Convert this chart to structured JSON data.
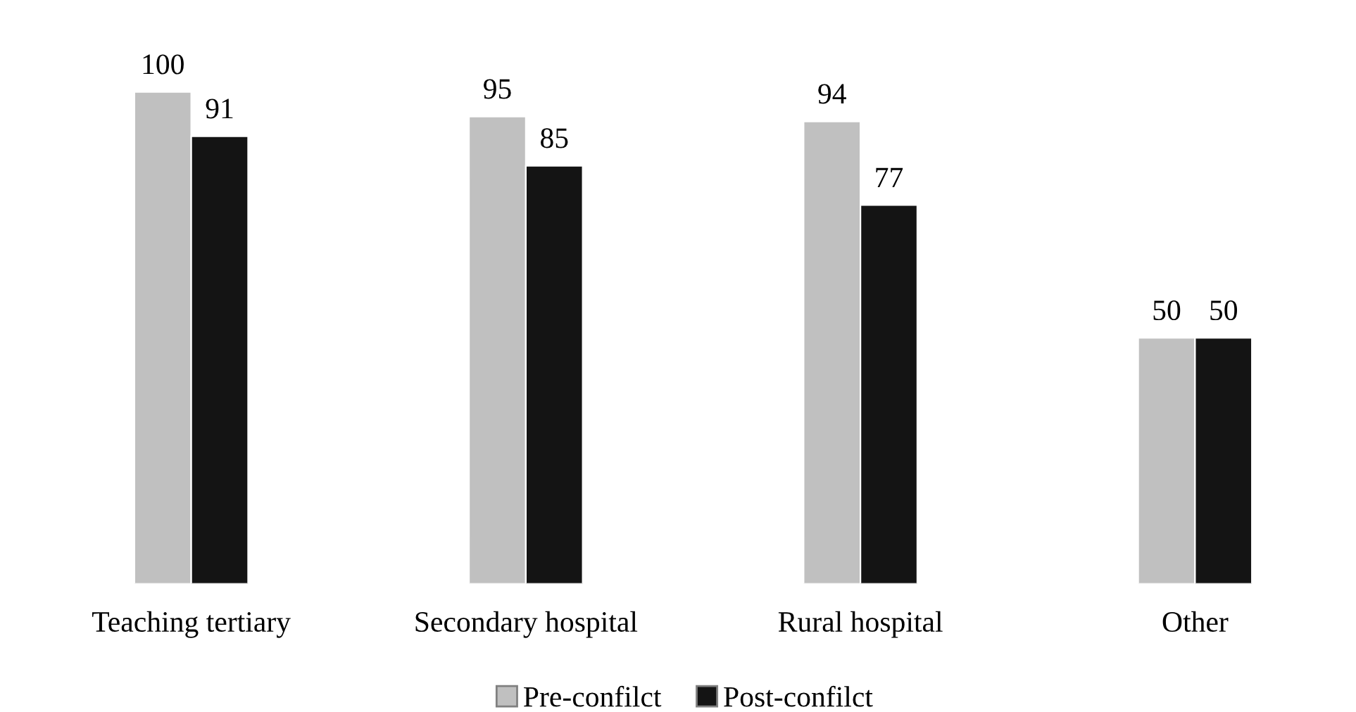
{
  "chart_data": {
    "type": "bar",
    "categories": [
      "Teaching tertiary",
      "Secondary hospital",
      "Rural hospital",
      "Other"
    ],
    "series": [
      {
        "name": "Pre-confilct",
        "color": "#c0c0c0",
        "values": [
          100,
          95,
          94,
          50
        ]
      },
      {
        "name": "Post-confilct",
        "color": "#141414",
        "values": [
          91,
          85,
          77,
          50
        ]
      }
    ],
    "data_labels": true,
    "legend": "bottom",
    "grid": false
  }
}
